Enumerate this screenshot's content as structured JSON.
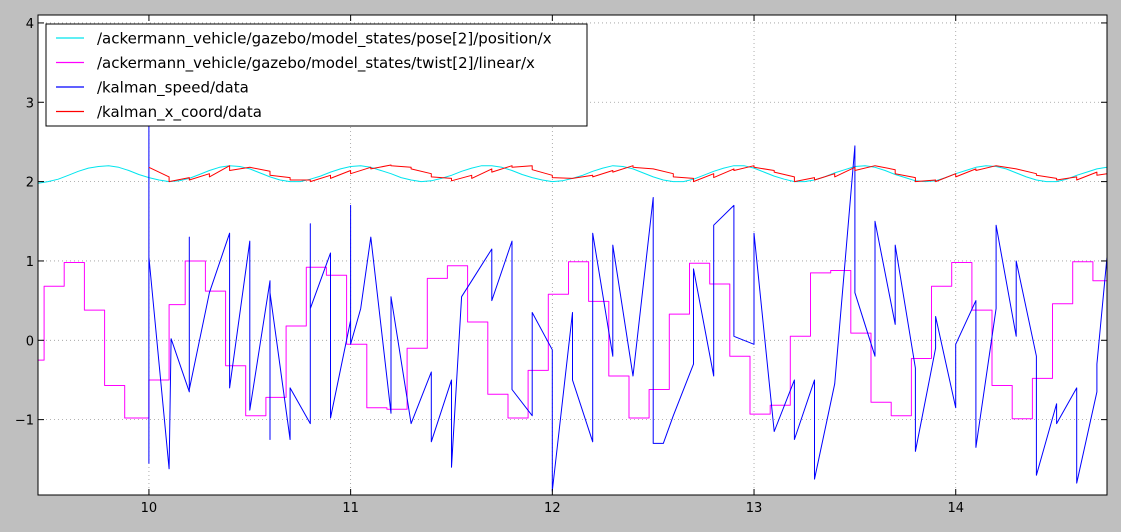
{
  "chart_data": {
    "type": "line",
    "xlim": [
      9.45,
      14.75
    ],
    "ylim": [
      -1.95,
      4.1
    ],
    "x_ticks": [
      10,
      11,
      12,
      13,
      14
    ],
    "y_ticks": [
      -1,
      0,
      1,
      2,
      3,
      4
    ],
    "x_tick_labels": [
      "10",
      "11",
      "12",
      "13",
      "14"
    ],
    "y_tick_labels": [
      "−1",
      "0",
      "1",
      "2",
      "3",
      "4"
    ],
    "grid": true,
    "legend_position": "top-left",
    "series": [
      {
        "name": "/ackermann_vehicle/gazebo/model_states/pose[2]/position/x",
        "color": "#00e5ee",
        "x": [
          9.45,
          9.5,
          9.55,
          9.6,
          9.65,
          9.7,
          9.75,
          9.8,
          9.85,
          9.9,
          9.95,
          10.0,
          10.05,
          10.1,
          10.15,
          10.2,
          10.25,
          10.3,
          10.35,
          10.4,
          10.45,
          10.5,
          10.55,
          10.6,
          10.65,
          10.7,
          10.75,
          10.8,
          10.85,
          10.9,
          10.95,
          11.0,
          11.05,
          11.1,
          11.15,
          11.2,
          11.25,
          11.3,
          11.35,
          11.4,
          11.45,
          11.5,
          11.55,
          11.6,
          11.65,
          11.7,
          11.75,
          11.8,
          11.85,
          11.9,
          11.95,
          12.0,
          12.05,
          12.1,
          12.15,
          12.2,
          12.25,
          12.3,
          12.35,
          12.4,
          12.45,
          12.5,
          12.55,
          12.6,
          12.65,
          12.7,
          12.75,
          12.8,
          12.85,
          12.9,
          12.95,
          13.0,
          13.05,
          13.1,
          13.15,
          13.2,
          13.25,
          13.3,
          13.35,
          13.4,
          13.45,
          13.5,
          13.55,
          13.6,
          13.65,
          13.7,
          13.75,
          13.8,
          13.85,
          13.9,
          13.95,
          14.0,
          14.05,
          14.1,
          14.15,
          14.2,
          14.25,
          14.3,
          14.35,
          14.4,
          14.45,
          14.5,
          14.55,
          14.6,
          14.65,
          14.7,
          14.75
        ],
        "values": [
          1.98,
          2.0,
          2.03,
          2.08,
          2.13,
          2.17,
          2.19,
          2.2,
          2.18,
          2.14,
          2.09,
          2.05,
          2.02,
          2.0,
          2.01,
          2.04,
          2.09,
          2.14,
          2.18,
          2.2,
          2.19,
          2.16,
          2.11,
          2.06,
          2.02,
          2.0,
          2.0,
          2.03,
          2.07,
          2.12,
          2.16,
          2.19,
          2.2,
          2.18,
          2.14,
          2.1,
          2.05,
          2.02,
          2.0,
          2.01,
          2.04,
          2.08,
          2.13,
          2.17,
          2.2,
          2.2,
          2.18,
          2.14,
          2.09,
          2.05,
          2.02,
          2.0,
          2.01,
          2.04,
          2.08,
          2.13,
          2.17,
          2.2,
          2.19,
          2.16,
          2.11,
          2.06,
          2.02,
          2.0,
          2.0,
          2.03,
          2.08,
          2.13,
          2.17,
          2.2,
          2.2,
          2.17,
          2.12,
          2.07,
          2.03,
          2.0,
          2.0,
          2.02,
          2.06,
          2.11,
          2.15,
          2.19,
          2.2,
          2.18,
          2.14,
          2.09,
          2.05,
          2.01,
          2.0,
          2.01,
          2.05,
          2.1,
          2.14,
          2.18,
          2.2,
          2.19,
          2.16,
          2.11,
          2.06,
          2.02,
          2.0,
          2.0,
          2.03,
          2.08,
          2.12,
          2.16,
          2.18
        ]
      },
      {
        "name": "/ackermann_vehicle/gazebo/model_states/twist[2]/linear/x",
        "color": "#ff00ff",
        "x": [
          9.45,
          9.48,
          9.48,
          9.58,
          9.58,
          9.68,
          9.68,
          9.78,
          9.78,
          9.88,
          9.88,
          9.98,
          9.98,
          10.0,
          10.0,
          10.1,
          10.1,
          10.18,
          10.18,
          10.28,
          10.28,
          10.38,
          10.38,
          10.48,
          10.48,
          10.58,
          10.58,
          10.68,
          10.68,
          10.78,
          10.78,
          10.88,
          10.88,
          10.98,
          10.98,
          11.08,
          11.08,
          11.18,
          11.18,
          11.28,
          11.28,
          11.38,
          11.38,
          11.48,
          11.48,
          11.58,
          11.58,
          11.68,
          11.68,
          11.78,
          11.78,
          11.88,
          11.88,
          11.98,
          11.98,
          12.08,
          12.08,
          12.18,
          12.18,
          12.28,
          12.28,
          12.38,
          12.38,
          12.48,
          12.48,
          12.58,
          12.58,
          12.68,
          12.68,
          12.78,
          12.78,
          12.88,
          12.88,
          12.98,
          12.98,
          13.08,
          13.08,
          13.18,
          13.18,
          13.28,
          13.28,
          13.38,
          13.38,
          13.48,
          13.48,
          13.58,
          13.58,
          13.68,
          13.68,
          13.78,
          13.78,
          13.88,
          13.88,
          13.98,
          13.98,
          14.08,
          14.08,
          14.18,
          14.18,
          14.28,
          14.28,
          14.38,
          14.38,
          14.48,
          14.48,
          14.58,
          14.58,
          14.68,
          14.68,
          14.75
        ],
        "values": [
          -0.25,
          -0.25,
          0.68,
          0.68,
          0.98,
          0.98,
          0.38,
          0.38,
          -0.57,
          -0.57,
          -0.98,
          -0.98,
          -0.98,
          -0.98,
          -0.5,
          -0.5,
          0.45,
          0.45,
          1.0,
          1.0,
          0.62,
          0.62,
          -0.32,
          -0.32,
          -0.95,
          -0.95,
          -0.72,
          -0.72,
          0.18,
          0.18,
          0.92,
          0.92,
          0.82,
          0.82,
          -0.05,
          -0.05,
          -0.85,
          -0.85,
          -0.87,
          -0.87,
          -0.1,
          -0.1,
          0.78,
          0.78,
          0.94,
          0.94,
          0.23,
          0.23,
          -0.68,
          -0.68,
          -0.98,
          -0.98,
          -0.38,
          -0.38,
          0.58,
          0.58,
          0.99,
          0.99,
          0.49,
          0.49,
          -0.45,
          -0.45,
          -0.98,
          -0.98,
          -0.62,
          -0.62,
          0.33,
          0.33,
          0.97,
          0.97,
          0.71,
          0.71,
          -0.2,
          -0.2,
          -0.93,
          -0.93,
          -0.82,
          -0.82,
          0.05,
          0.05,
          0.85,
          0.85,
          0.88,
          0.88,
          0.09,
          0.09,
          -0.78,
          -0.78,
          -0.95,
          -0.95,
          -0.23,
          -0.23,
          0.68,
          0.68,
          0.98,
          0.98,
          0.38,
          0.38,
          -0.57,
          -0.57,
          -0.99,
          -0.99,
          -0.48,
          -0.48,
          0.46,
          0.46,
          0.99,
          0.99,
          0.75,
          0.75
        ]
      },
      {
        "name": "/kalman_speed/data",
        "color": "#0000ff",
        "x": [
          10.0,
          10.0,
          10.0,
          10.0,
          10.1,
          10.11,
          10.2,
          10.2,
          10.2,
          10.3,
          10.4,
          10.4,
          10.5,
          10.5,
          10.6,
          10.6,
          10.6,
          10.7,
          10.7,
          10.8,
          10.8,
          10.8,
          10.9,
          10.9,
          11.0,
          11.0,
          11.0,
          11.05,
          11.1,
          11.2,
          11.2,
          11.3,
          11.4,
          11.4,
          11.5,
          11.5,
          11.55,
          11.6,
          11.7,
          11.7,
          11.8,
          11.8,
          11.9,
          11.9,
          12.0,
          12.0,
          12.1,
          12.1,
          12.2,
          12.2,
          12.3,
          12.3,
          12.4,
          12.5,
          12.5,
          12.55,
          12.6,
          12.7,
          12.7,
          12.8,
          12.8,
          12.9,
          12.9,
          13.0,
          13.0,
          13.1,
          13.2,
          13.2,
          13.3,
          13.3,
          13.4,
          13.4,
          13.5,
          13.5,
          13.6,
          13.6,
          13.7,
          13.7,
          13.8,
          13.8,
          13.9,
          13.9,
          14.0,
          14.0,
          14.1,
          14.1,
          14.2,
          14.2,
          14.3,
          14.3,
          14.4,
          14.4,
          14.5,
          14.5,
          14.6,
          14.6,
          14.7,
          14.7,
          14.75
        ],
        "values": [
          2.85,
          -1.55,
          2.85,
          1.05,
          -1.62,
          0.02,
          -0.65,
          1.3,
          -0.62,
          0.6,
          1.35,
          -0.6,
          1.25,
          -0.88,
          0.75,
          -1.25,
          0.6,
          -1.25,
          -0.6,
          -1.05,
          1.47,
          0.4,
          1.1,
          -0.98,
          0.25,
          1.7,
          -0.05,
          0.4,
          1.3,
          -0.92,
          0.55,
          -1.05,
          -0.4,
          -1.28,
          -0.5,
          -1.6,
          0.55,
          0.75,
          1.15,
          0.5,
          1.25,
          -0.62,
          -0.95,
          0.35,
          -0.12,
          -1.9,
          0.35,
          -0.5,
          -1.28,
          1.35,
          -0.2,
          1.2,
          -0.45,
          1.8,
          -1.3,
          -1.3,
          -0.95,
          -0.3,
          0.9,
          -0.45,
          1.45,
          1.7,
          0.05,
          -0.05,
          1.35,
          -1.15,
          -0.5,
          -1.25,
          -0.5,
          -1.75,
          -0.55,
          -0.55,
          2.45,
          0.6,
          -0.2,
          1.5,
          0.2,
          1.2,
          -0.35,
          -1.4,
          -0.1,
          0.3,
          -0.85,
          -0.05,
          0.5,
          -1.35,
          0.4,
          1.45,
          0.05,
          1.0,
          -0.2,
          -1.7,
          -0.8,
          -1.05,
          -0.6,
          -1.8,
          -0.65,
          -0.3,
          1.05
        ],
        "note_visible": false
      },
      {
        "name": "/kalman_x_coord/data",
        "color": "#ff0000",
        "x": [
          10.0,
          10.0,
          10.1,
          10.1,
          10.2,
          10.2,
          10.3,
          10.3,
          10.4,
          10.4,
          10.5,
          10.5,
          10.6,
          10.6,
          10.7,
          10.7,
          10.8,
          10.8,
          10.9,
          10.9,
          11.0,
          11.0,
          11.1,
          11.1,
          11.2,
          11.2,
          11.3,
          11.3,
          11.4,
          11.4,
          11.5,
          11.5,
          11.6,
          11.6,
          11.7,
          11.7,
          11.8,
          11.8,
          11.9,
          11.9,
          12.0,
          12.0,
          12.1,
          12.1,
          12.2,
          12.2,
          12.3,
          12.3,
          12.4,
          12.4,
          12.5,
          12.5,
          12.6,
          12.6,
          12.7,
          12.7,
          12.8,
          12.8,
          12.9,
          12.9,
          13.0,
          13.0,
          13.1,
          13.1,
          13.2,
          13.2,
          13.3,
          13.3,
          13.4,
          13.4,
          13.5,
          13.5,
          13.6,
          13.6,
          13.7,
          13.7,
          13.8,
          13.8,
          13.9,
          13.9,
          14.0,
          14.0,
          14.1,
          14.1,
          14.2,
          14.2,
          14.3,
          14.3,
          14.4,
          14.4,
          14.5,
          14.5,
          14.6,
          14.6,
          14.7,
          14.7,
          14.75
        ],
        "values": [
          2.18,
          2.18,
          2.06,
          2.0,
          2.05,
          2.02,
          2.1,
          2.06,
          2.2,
          2.14,
          2.18,
          2.18,
          2.13,
          2.08,
          2.05,
          2.02,
          2.02,
          2.0,
          2.08,
          2.04,
          2.14,
          2.1,
          2.18,
          2.16,
          2.21,
          2.2,
          2.18,
          2.16,
          2.1,
          2.06,
          2.04,
          2.01,
          2.08,
          2.04,
          2.16,
          2.12,
          2.2,
          2.18,
          2.2,
          2.15,
          2.08,
          2.05,
          2.04,
          2.04,
          2.08,
          2.06,
          2.14,
          2.12,
          2.2,
          2.18,
          2.16,
          2.16,
          2.1,
          2.06,
          2.04,
          2.0,
          2.1,
          2.05,
          2.16,
          2.14,
          2.2,
          2.18,
          2.14,
          2.12,
          2.06,
          2.0,
          2.05,
          2.02,
          2.1,
          2.06,
          2.18,
          2.14,
          2.2,
          2.2,
          2.15,
          2.1,
          2.05,
          2.0,
          2.02,
          2.0,
          2.1,
          2.06,
          2.16,
          2.14,
          2.2,
          2.2,
          2.16,
          2.16,
          2.1,
          2.08,
          2.04,
          2.02,
          2.06,
          2.02,
          2.12,
          2.08,
          2.1
        ]
      }
    ]
  }
}
